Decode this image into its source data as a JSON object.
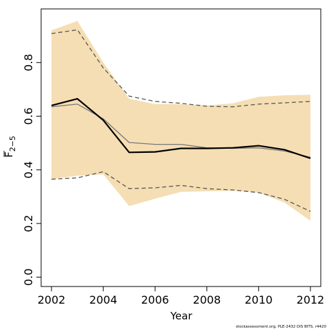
{
  "chart_data": {
    "type": "line",
    "xlabel": "Year",
    "ylabel": "F",
    "ylabel_subscript": "2−5",
    "xlim": [
      2001.6,
      2012.4
    ],
    "ylim": [
      -0.035,
      1.0
    ],
    "xticks": [
      2002,
      2004,
      2006,
      2008,
      2010,
      2012
    ],
    "yticks": [
      0.0,
      0.2,
      0.4,
      0.6,
      0.8
    ],
    "x": [
      2002,
      2003,
      2004,
      2005,
      2006,
      2007,
      2008,
      2009,
      2010,
      2011,
      2012
    ],
    "band": {
      "upper": [
        0.92,
        0.955,
        0.8,
        0.665,
        0.645,
        0.645,
        0.64,
        0.648,
        0.672,
        0.678,
        0.68
      ],
      "lower": [
        0.365,
        0.378,
        0.383,
        0.265,
        0.292,
        0.318,
        0.32,
        0.322,
        0.315,
        0.278,
        0.21
      ],
      "color": "#f5deb3"
    },
    "series": [
      {
        "values": [
          0.64,
          0.665,
          0.585,
          0.465,
          0.467,
          0.48,
          0.48,
          0.482,
          0.49,
          0.475,
          0.443
        ],
        "color": "#000000",
        "style": "solid",
        "width": 2.2
      },
      {
        "values": [
          0.635,
          0.645,
          0.59,
          0.502,
          0.495,
          0.495,
          0.482,
          0.48,
          0.482,
          0.47,
          0.447
        ],
        "color": "#777777",
        "style": "solid",
        "width": 1.3
      },
      {
        "values": [
          0.908,
          0.922,
          0.78,
          0.675,
          0.655,
          0.648,
          0.637,
          0.635,
          0.645,
          0.65,
          0.655
        ],
        "color": "#555555",
        "style": "dashed",
        "width": 1.3
      },
      {
        "values": [
          0.365,
          0.37,
          0.393,
          0.33,
          0.333,
          0.342,
          0.33,
          0.325,
          0.315,
          0.29,
          0.245
        ],
        "color": "#555555",
        "style": "dashed",
        "width": 1.3
      }
    ],
    "grid": false
  },
  "credit": "stockassessment.org, PLE-2432 DIS BITS, r4420"
}
